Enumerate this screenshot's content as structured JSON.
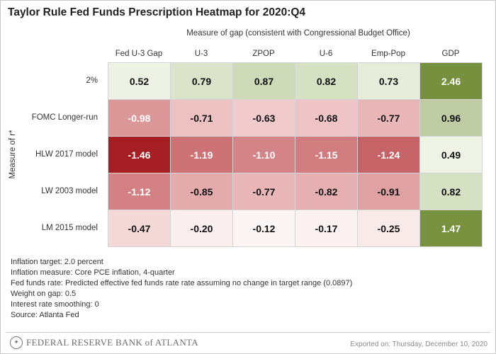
{
  "title": "Taylor Rule Fed Funds Prescription Heatmap for 2020:Q4",
  "chart_data": {
    "type": "heatmap",
    "title": "Taylor Rule Fed Funds Prescription Heatmap for 2020:Q4",
    "xlabel": "Measure of gap (consistent with Congressional Budget Office)",
    "ylabel": "Measure of r*",
    "columns": [
      "Fed U-3 Gap",
      "U-3",
      "ZPOP",
      "U-6",
      "Emp-Pop",
      "GDP"
    ],
    "rows": [
      "2%",
      "FOMC Longer-run",
      "HLW 2017 model",
      "LW 2003 model",
      "LM 2015 model"
    ],
    "values": [
      [
        0.52,
        0.79,
        0.87,
        0.82,
        0.73,
        2.46
      ],
      [
        -0.98,
        -0.71,
        -0.63,
        -0.68,
        -0.77,
        0.96
      ],
      [
        -1.46,
        -1.19,
        -1.1,
        -1.15,
        -1.24,
        0.49
      ],
      [
        -1.12,
        -0.85,
        -0.77,
        -0.82,
        -0.91,
        0.82
      ],
      [
        -0.47,
        -0.2,
        -0.12,
        -0.17,
        -0.25,
        1.47
      ]
    ],
    "labels": [
      [
        "0.52",
        "0.79",
        "0.87",
        "0.82",
        "0.73",
        "2.46"
      ],
      [
        "-0.98",
        "-0.71",
        "-0.63",
        "-0.68",
        "-0.77",
        "0.96"
      ],
      [
        "-1.46",
        "-1.19",
        "-1.10",
        "-1.15",
        "-1.24",
        "0.49"
      ],
      [
        "-1.12",
        "-0.85",
        "-0.77",
        "-0.82",
        "-0.91",
        "0.82"
      ],
      [
        "-0.47",
        "-0.20",
        "-0.12",
        "-0.17",
        "-0.25",
        "1.47"
      ]
    ],
    "color_scale": {
      "neutral": "#ffffff",
      "pale_red": "#f0c8c9",
      "mid_red": "#d07a7d",
      "dark_red": "#a41e23",
      "pale_green": "#e3ebd5",
      "mid_green": "#bbc99f",
      "dark_green": "#76903d"
    }
  },
  "notes": [
    "Inflation target: 2.0 percent",
    "Inflation measure: Core PCE inflation, 4-quarter",
    "Fed funds rate: Predicted effective fed funds rate rate assuming no change in target range (0.0897)",
    "Weight on gap: 0.5",
    "Interest rate smoothing: 0",
    "Source: Atlanta Fed"
  ],
  "footer": {
    "logo_text": "FEDERAL RESERVE BANK of ATLANTA",
    "logo_icon": "fed-seal-icon",
    "exported": "Exported on: Thursday, December 10, 2020"
  }
}
